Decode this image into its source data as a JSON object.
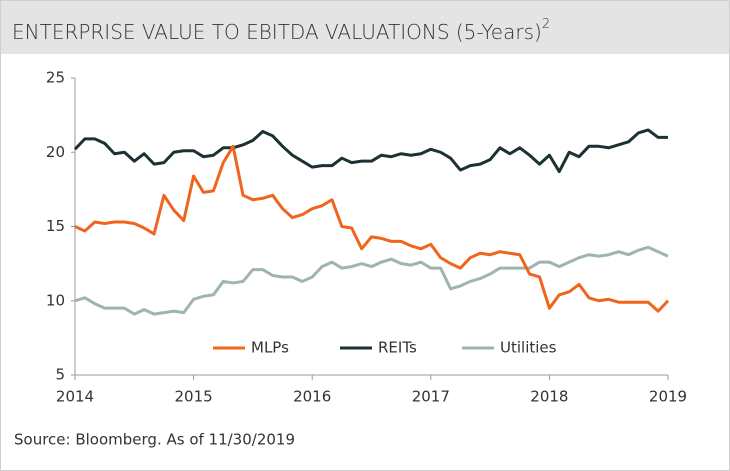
{
  "chart_data": {
    "type": "line",
    "title": "ENTERPRISE VALUE TO EBITDA VALUATIONS (5-Years)",
    "title_superscript": "2",
    "source": "Source: Bloomberg. As of 11/30/2019",
    "x": [
      2014,
      2014.083,
      2014.167,
      2014.25,
      2014.333,
      2014.417,
      2014.5,
      2014.583,
      2014.667,
      2014.75,
      2014.833,
      2014.917,
      2015,
      2015.083,
      2015.167,
      2015.25,
      2015.333,
      2015.417,
      2015.5,
      2015.583,
      2015.667,
      2015.75,
      2015.833,
      2015.917,
      2016,
      2016.083,
      2016.167,
      2016.25,
      2016.333,
      2016.417,
      2016.5,
      2016.583,
      2016.667,
      2016.75,
      2016.833,
      2016.917,
      2017,
      2017.083,
      2017.167,
      2017.25,
      2017.333,
      2017.417,
      2017.5,
      2017.583,
      2017.667,
      2017.75,
      2017.833,
      2017.917,
      2018,
      2018.083,
      2018.167,
      2018.25,
      2018.333,
      2018.417,
      2018.5,
      2018.583,
      2018.667,
      2018.75,
      2018.833,
      2018.917,
      2019
    ],
    "series": [
      {
        "name": "MLPs",
        "color": "#f0641e",
        "values": [
          15,
          14.7,
          15.3,
          15.2,
          15.3,
          15.3,
          15.2,
          14.9,
          14.5,
          17.1,
          16.1,
          15.4,
          18.4,
          17.3,
          17.4,
          19.3,
          20.4,
          17.1,
          16.8,
          16.9,
          17.1,
          16.2,
          15.6,
          15.8,
          16.2,
          16.4,
          16.8,
          15.0,
          14.9,
          13.5,
          14.3,
          14.2,
          14.0,
          14.0,
          13.7,
          13.5,
          13.8,
          12.9,
          12.5,
          12.2,
          12.9,
          13.2,
          13.1,
          13.3,
          13.2,
          13.1,
          11.8,
          11.6,
          9.5,
          10.4,
          10.6,
          11.1,
          10.2,
          10.0,
          10.1,
          9.9,
          9.9,
          9.9,
          9.9,
          9.3,
          10.0
        ]
      },
      {
        "name": "REITs",
        "color": "#1b3134",
        "values": [
          20.2,
          20.9,
          20.9,
          20.6,
          19.9,
          20.0,
          19.4,
          19.9,
          19.2,
          19.3,
          20.0,
          20.1,
          20.1,
          19.7,
          19.8,
          20.3,
          20.3,
          20.5,
          20.8,
          21.4,
          21.1,
          20.4,
          19.8,
          19.4,
          19.0,
          19.1,
          19.1,
          19.6,
          19.3,
          19.4,
          19.4,
          19.8,
          19.7,
          19.9,
          19.8,
          19.9,
          20.2,
          20.0,
          19.6,
          18.8,
          19.1,
          19.2,
          19.5,
          20.3,
          19.9,
          20.3,
          19.8,
          19.2,
          19.8,
          18.7,
          20.0,
          19.7,
          20.4,
          20.4,
          20.3,
          20.5,
          20.7,
          21.3,
          21.5,
          21.0,
          21.0
        ]
      },
      {
        "name": "Utilities",
        "color": "#9db4b1",
        "values": [
          10.0,
          10.2,
          9.8,
          9.5,
          9.5,
          9.5,
          9.1,
          9.4,
          9.1,
          9.2,
          9.3,
          9.2,
          10.1,
          10.3,
          10.4,
          11.3,
          11.2,
          11.3,
          12.1,
          12.1,
          11.7,
          11.6,
          11.6,
          11.3,
          11.6,
          12.3,
          12.6,
          12.2,
          12.3,
          12.5,
          12.3,
          12.6,
          12.8,
          12.5,
          12.4,
          12.6,
          12.2,
          12.2,
          10.8,
          11.0,
          11.3,
          11.5,
          11.8,
          12.2,
          12.2,
          12.2,
          12.2,
          12.6,
          12.6,
          12.3,
          12.6,
          12.9,
          13.1,
          13.0,
          13.1,
          13.3,
          13.1,
          13.4,
          13.6,
          13.3,
          13.0
        ]
      }
    ],
    "xlim": [
      2014,
      2019
    ],
    "xticks": [
      2014,
      2015,
      2016,
      2017,
      2018,
      2019
    ],
    "ylim": [
      5,
      25
    ],
    "yticks": [
      5,
      10,
      15,
      20,
      25
    ],
    "grid": false
  }
}
